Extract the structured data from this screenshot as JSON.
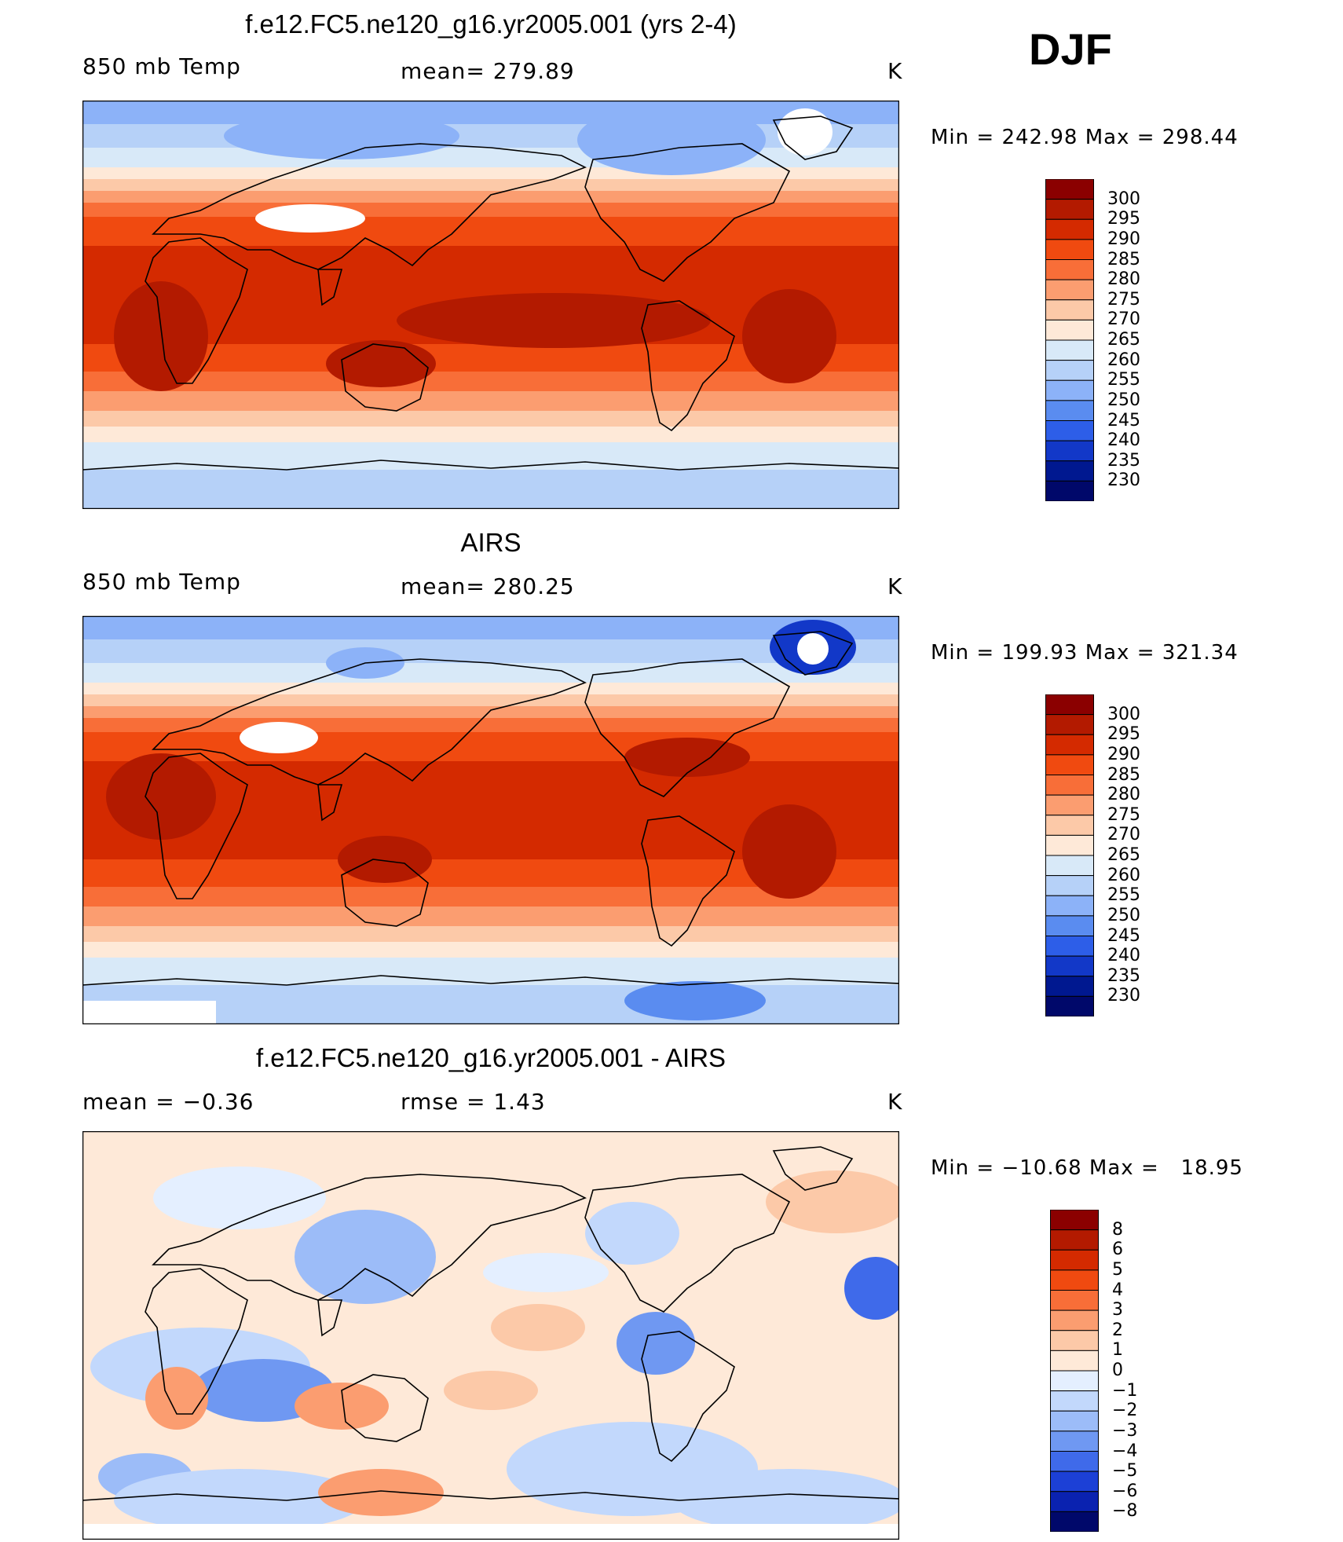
{
  "season": "DJF",
  "panels": [
    {
      "title": "f.e12.FC5.ne120_g16.yr2005.001 (yrs 2-4)",
      "left_label": "850 mb Temp",
      "center_label": "mean= 279.89",
      "right_label": "K",
      "stats": "Min = 242.98 Max = 298.44",
      "colorbar_labels": [
        "300",
        "295",
        "290",
        "285",
        "280",
        "275",
        "270",
        "265",
        "260",
        "255",
        "250",
        "245",
        "240",
        "235",
        "230"
      ]
    },
    {
      "title": "AIRS",
      "left_label": "850 mb Temp",
      "center_label": "mean= 280.25",
      "right_label": "K",
      "stats": "Min = 199.93 Max = 321.34",
      "colorbar_labels": [
        "300",
        "295",
        "290",
        "285",
        "280",
        "275",
        "270",
        "265",
        "260",
        "255",
        "250",
        "245",
        "240",
        "235",
        "230"
      ]
    },
    {
      "title": "f.e12.FC5.ne120_g16.yr2005.001 - AIRS",
      "left_label": "mean =   −0.36",
      "center_label": "rmse =    1.43",
      "right_label": "K",
      "stats": "Min = −10.68 Max =   18.95",
      "colorbar_labels": [
        "8",
        "6",
        "5",
        "4",
        "3",
        "2",
        "1",
        "0",
        "−1",
        "−2",
        "−3",
        "−4",
        "−5",
        "−6",
        "−8"
      ]
    }
  ],
  "colors": {
    "temp_scale": [
      "#8b0000",
      "#b31a00",
      "#d42a00",
      "#f04a10",
      "#f86e38",
      "#fb9d70",
      "#fcc9a8",
      "#fee9d8",
      "#d8e9f8",
      "#b6d1f8",
      "#8cb2f8",
      "#5a8cf0",
      "#2d5ee8",
      "#1238c8",
      "#001890",
      "#00086a"
    ],
    "diff_scale": [
      "#8b0000",
      "#b31a00",
      "#d42a00",
      "#f04a10",
      "#f86e38",
      "#fb9d70",
      "#fcc9a8",
      "#fee9d8",
      "#e4efff",
      "#c2d8fc",
      "#9cbcf8",
      "#6f98f2",
      "#3f6aea",
      "#1c40d6",
      "#0a22b0",
      "#00086a"
    ],
    "land_outline": "#000000",
    "missing": "#ffffff"
  }
}
